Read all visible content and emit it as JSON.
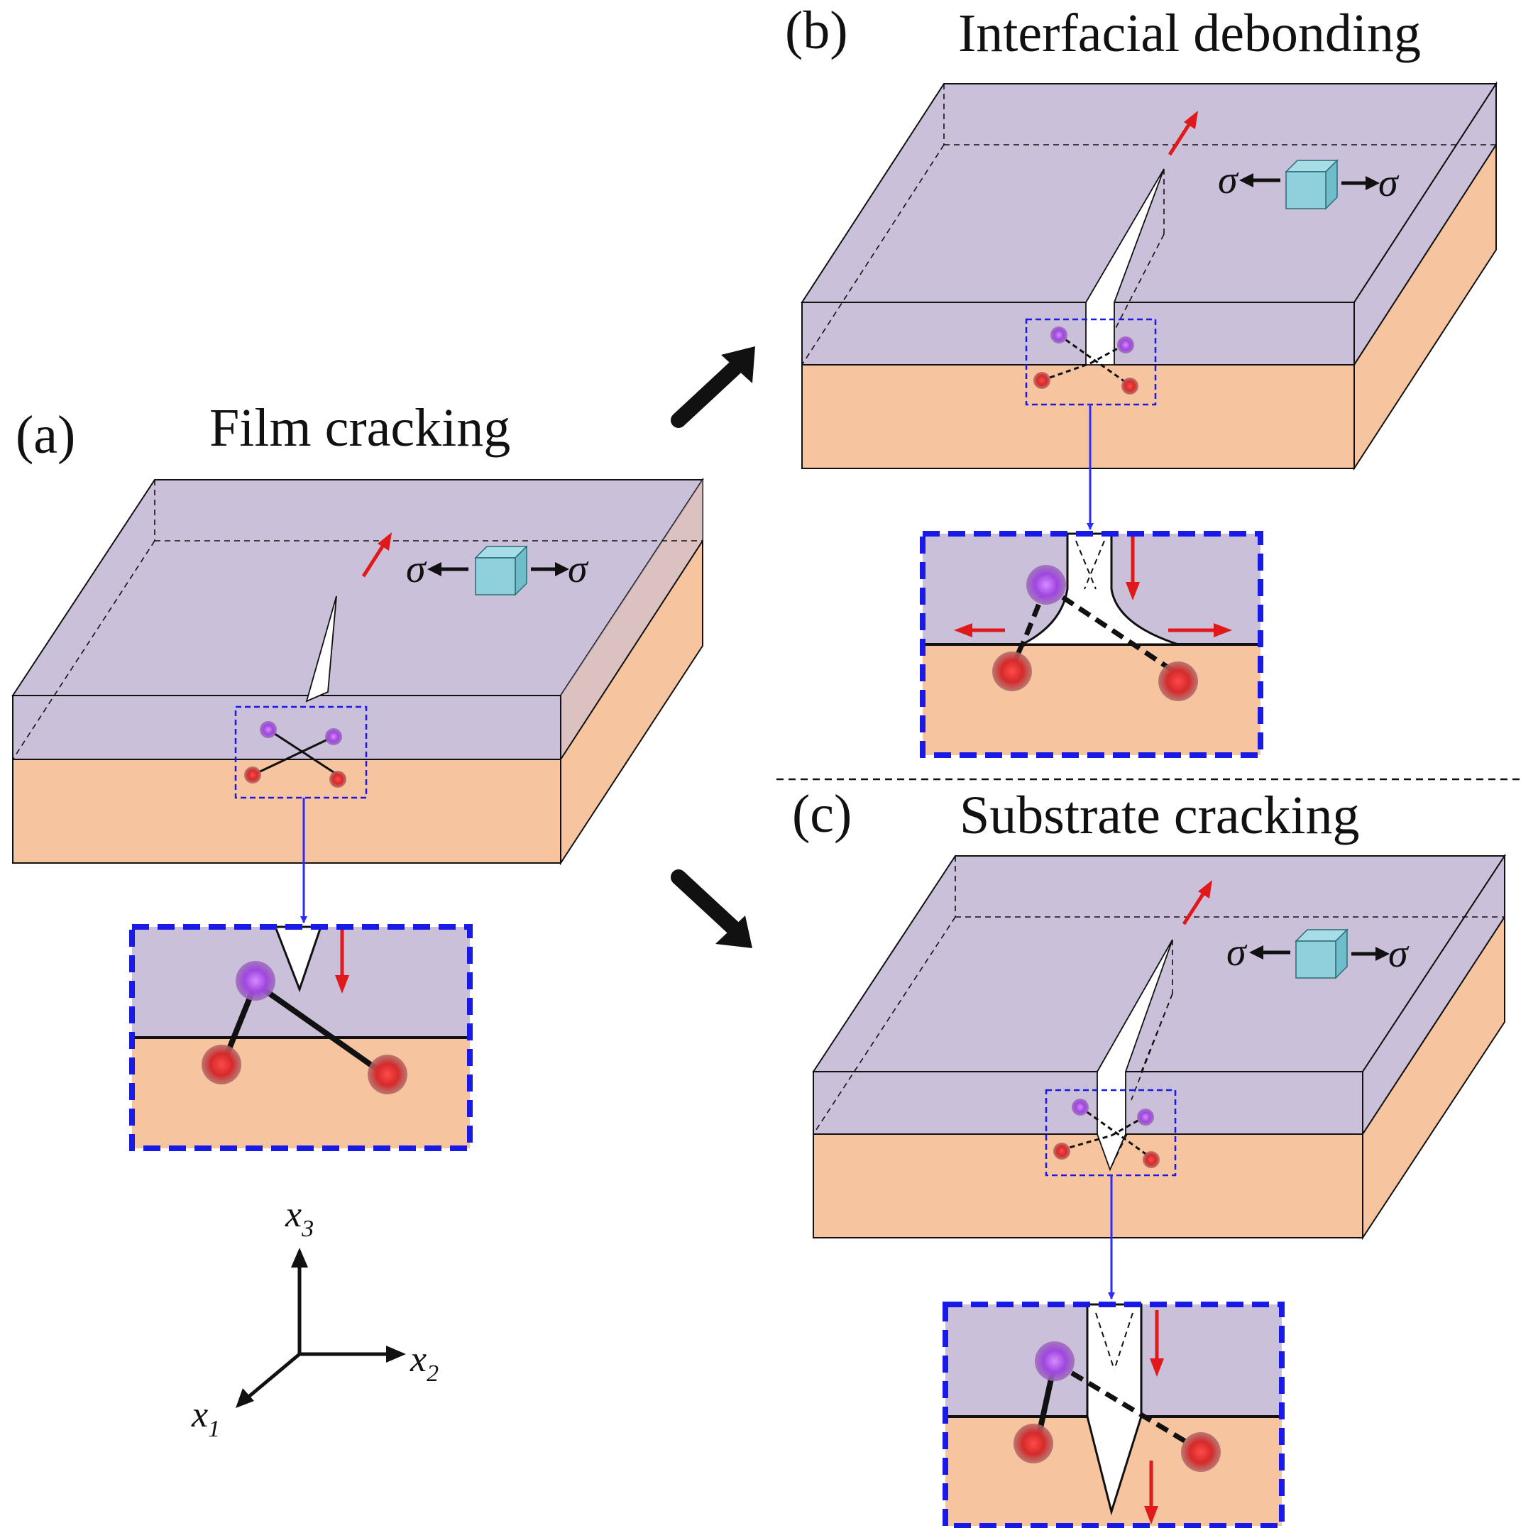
{
  "panels": [
    {
      "label": "(a)",
      "title": "Film cracking"
    },
    {
      "label": "(b)",
      "title": "Interfacial debonding"
    },
    {
      "label": "(c)",
      "title": "Substrate cracking"
    }
  ],
  "stress_symbol": "σ",
  "axes": {
    "x1": {
      "base": "x",
      "sub": "1"
    },
    "x2": {
      "base": "x",
      "sub": "2"
    },
    "x3": {
      "base": "x",
      "sub": "3"
    }
  },
  "colors": {
    "film": "#cbc0d9",
    "substrate": "#f6c49e",
    "inset_border": "#1a1ae6",
    "connector": "#2b2bff",
    "stress_cube": "#8fd0dc",
    "crack_arrow": "#e01a1a",
    "film_atom": "#9a3fd6",
    "substrate_atom": "#d62a2a"
  }
}
